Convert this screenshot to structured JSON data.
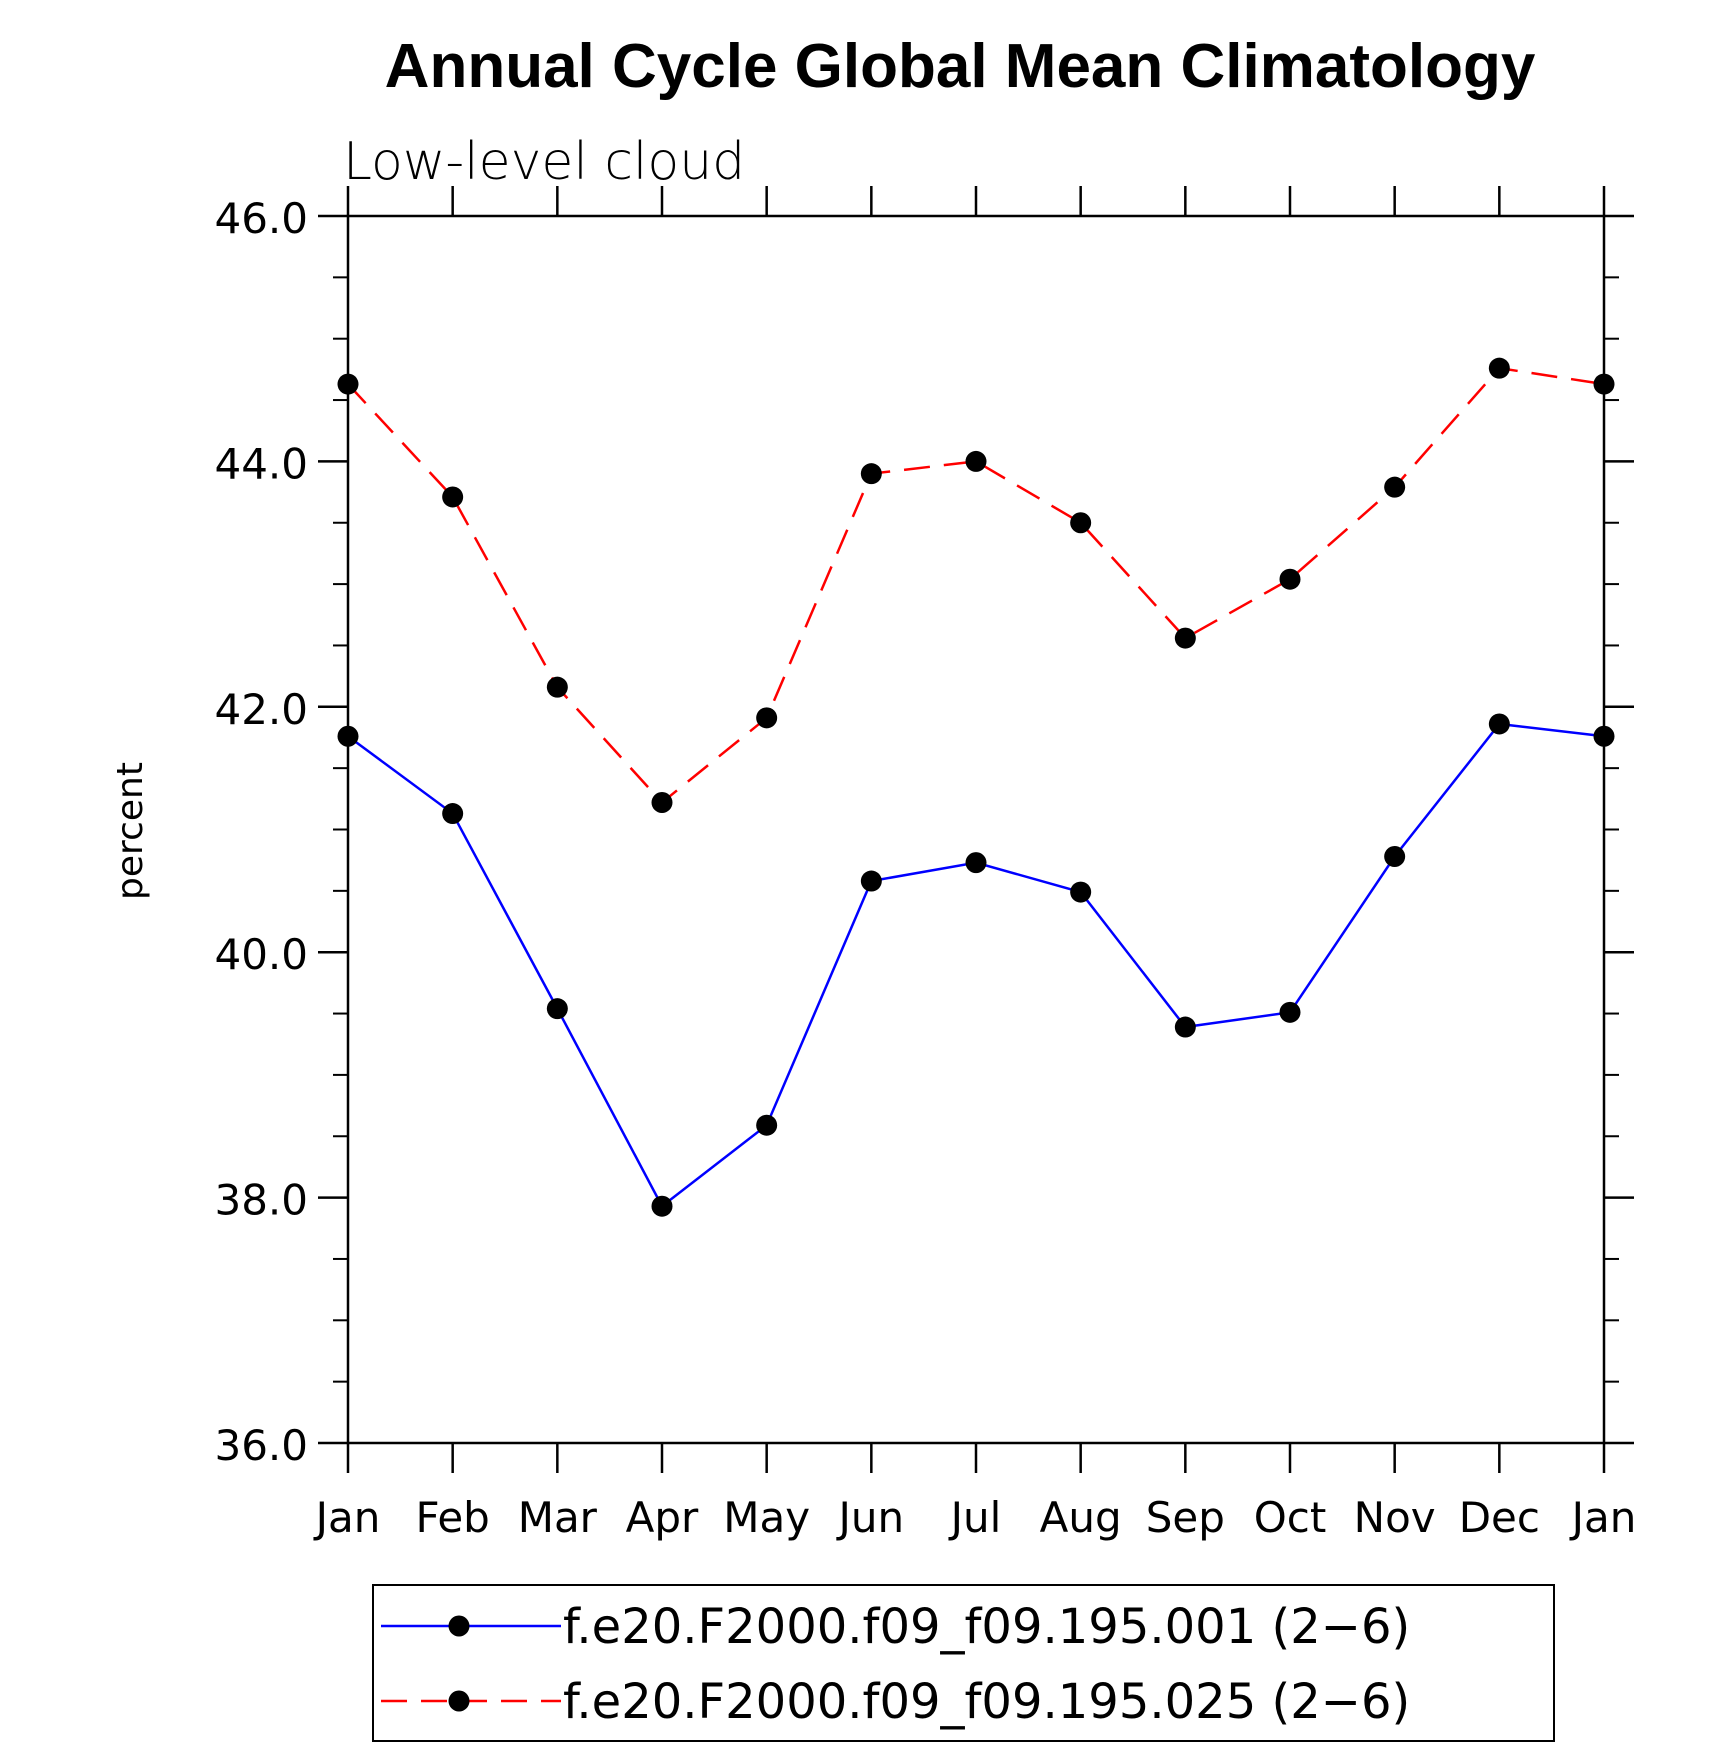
{
  "chart_data": {
    "type": "line",
    "title": "Annual Cycle Global Mean Climatology",
    "subtitle": "Low-level cloud",
    "xlabel": "",
    "ylabel": "percent",
    "ylim": [
      36.0,
      46.0
    ],
    "yticks": [
      "36.0",
      "38.0",
      "40.0",
      "42.0",
      "44.0",
      "46.0"
    ],
    "categories": [
      "Jan",
      "Feb",
      "Mar",
      "Apr",
      "May",
      "Jun",
      "Jul",
      "Aug",
      "Sep",
      "Oct",
      "Nov",
      "Dec",
      "Jan"
    ],
    "grid": false,
    "legend_position": "bottom",
    "series": [
      {
        "name": "f.e20.F2000.f09_f09.195.001 (2−6)",
        "color": "#0000ff",
        "dash": "solid",
        "marker": "filled-circle",
        "values": [
          41.76,
          41.13,
          39.54,
          37.93,
          38.59,
          40.58,
          40.73,
          40.49,
          39.39,
          39.51,
          40.78,
          41.86,
          41.76
        ]
      },
      {
        "name": "f.e20.F2000.f09_f09.195.025 (2−6)",
        "color": "#ff0000",
        "dash": "dashed",
        "marker": "filled-circle",
        "values": [
          44.63,
          43.71,
          42.16,
          41.22,
          41.91,
          43.9,
          44.0,
          43.5,
          42.56,
          43.04,
          43.79,
          44.76,
          44.63
        ]
      }
    ]
  }
}
